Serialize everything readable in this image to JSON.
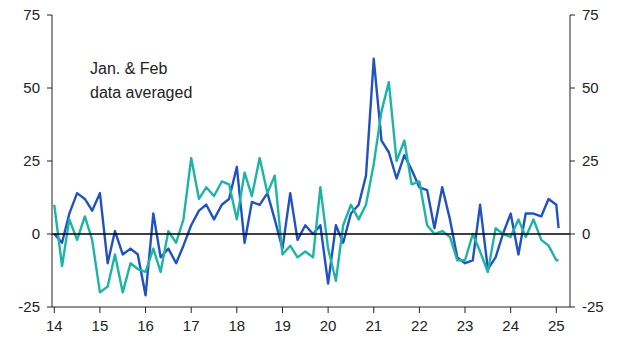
{
  "chart_data": {
    "type": "line",
    "annotations": [
      "Jan. & Feb",
      "data averaged"
    ],
    "x": [
      14,
      14.17,
      14.33,
      14.5,
      14.67,
      14.83,
      15,
      15.17,
      15.33,
      15.5,
      15.67,
      15.83,
      16,
      16.17,
      16.33,
      16.5,
      16.67,
      16.83,
      17,
      17.17,
      17.33,
      17.5,
      17.67,
      17.83,
      18,
      18.17,
      18.33,
      18.5,
      18.67,
      18.83,
      19,
      19.17,
      19.33,
      19.5,
      19.67,
      19.83,
      20,
      20.17,
      20.33,
      20.5,
      20.67,
      20.83,
      21,
      21.17,
      21.33,
      21.5,
      21.67,
      21.83,
      22,
      22.17,
      22.33,
      22.5,
      22.67,
      22.83,
      23,
      23.17,
      23.33,
      23.5,
      23.67,
      23.83,
      24,
      24.17,
      24.33,
      24.5,
      24.67,
      24.83,
      25,
      25.05
    ],
    "series": [
      {
        "color": "#2152c4",
        "values": [
          0,
          -3,
          7,
          14,
          12,
          8,
          14,
          -10,
          1,
          -7,
          -5,
          -7,
          -21,
          7,
          -8,
          -5,
          -10,
          -4,
          3,
          8,
          10,
          5,
          10,
          12,
          23,
          -3,
          11,
          10,
          14,
          5,
          -5,
          14,
          -2,
          3,
          0,
          3,
          -17,
          3,
          -3,
          7,
          10,
          20,
          60,
          32,
          28,
          19,
          27,
          22,
          16,
          15,
          2,
          16,
          5,
          -8,
          -10,
          -9,
          10,
          -12,
          -8,
          0,
          7,
          -7,
          7,
          7,
          6,
          12,
          10,
          2
        ]
      },
      {
        "color": "#1db4a6",
        "values": [
          10,
          -11,
          5,
          -2,
          6,
          -2,
          -20,
          -18,
          -7,
          -20,
          -10,
          -12,
          -13,
          -5,
          -13,
          1,
          -3,
          5,
          26,
          12,
          16,
          13,
          18,
          17,
          5,
          21,
          13,
          26,
          14,
          20,
          -7,
          -4,
          -8,
          -6,
          -8,
          16,
          -5,
          -16,
          3,
          10,
          5,
          10,
          24,
          42,
          52,
          25,
          32,
          17,
          18,
          3,
          0,
          1,
          -1,
          -9,
          -9,
          0,
          -6,
          -13,
          2,
          0,
          -1,
          5,
          -1,
          5,
          -2,
          -4,
          -9,
          -9
        ]
      }
    ],
    "xlim": [
      13.95,
      25.3
    ],
    "xticks": [
      14,
      15,
      16,
      17,
      18,
      19,
      20,
      21,
      22,
      23,
      24,
      25
    ],
    "ylim": [
      -25,
      75
    ],
    "yticks": [
      -25,
      0,
      25,
      50,
      75
    ],
    "grid": false
  }
}
